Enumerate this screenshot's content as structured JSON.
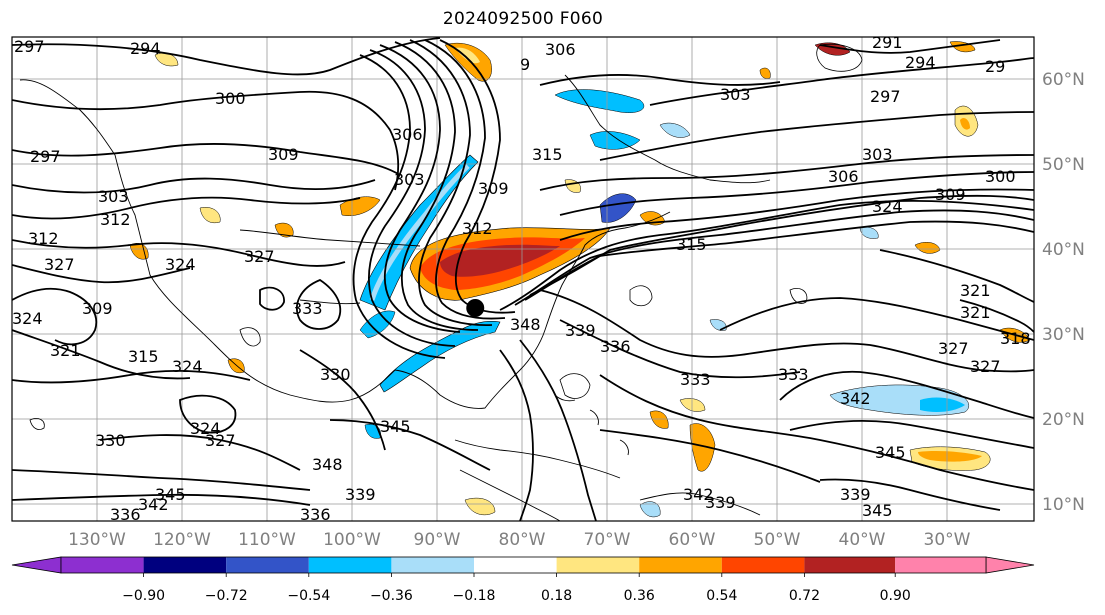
{
  "title": "2024092500 F060",
  "latitude_labels": [
    "60°N",
    "50°N",
    "40°N",
    "30°N",
    "20°N",
    "10°N"
  ],
  "longitude_labels": [
    "130°W",
    "120°W",
    "110°W",
    "100°W",
    "90°W",
    "80°W",
    "70°W",
    "60°W",
    "50°W",
    "40°W",
    "30°W"
  ],
  "colorbar": {
    "colors": [
      "#8d2fd0",
      "#00007f",
      "#3354c8",
      "#00bfff",
      "#a9def9",
      "#ffffff",
      "#ffe680",
      "#ffa500",
      "#ff4500",
      "#b22222",
      "#ff82ab"
    ],
    "tick_labels": [
      "−0.90",
      "−0.72",
      "−0.54",
      "−0.36",
      "−0.18",
      "0.18",
      "0.36",
      "0.54",
      "0.72",
      "0.90"
    ]
  },
  "contour_labels": [
    {
      "text": "297"
    },
    {
      "text": "294"
    },
    {
      "text": "306"
    },
    {
      "text": "9"
    },
    {
      "text": "291"
    },
    {
      "text": "294"
    },
    {
      "text": "29"
    },
    {
      "text": "300"
    },
    {
      "text": "303"
    },
    {
      "text": "297"
    },
    {
      "text": "306"
    },
    {
      "text": "309"
    },
    {
      "text": "297"
    },
    {
      "text": "303"
    },
    {
      "text": "309"
    },
    {
      "text": "315"
    },
    {
      "text": "303"
    },
    {
      "text": "306"
    },
    {
      "text": "309"
    },
    {
      "text": "300"
    },
    {
      "text": "303"
    },
    {
      "text": "312"
    },
    {
      "text": "324"
    },
    {
      "text": "315"
    },
    {
      "text": "312"
    },
    {
      "text": "327"
    },
    {
      "text": "327"
    },
    {
      "text": "324"
    },
    {
      "text": "309"
    },
    {
      "text": "324"
    },
    {
      "text": "321"
    },
    {
      "text": "315"
    },
    {
      "text": "324"
    },
    {
      "text": "333"
    },
    {
      "text": "348"
    },
    {
      "text": "339"
    },
    {
      "text": "336"
    },
    {
      "text": "333"
    },
    {
      "text": "333"
    },
    {
      "text": "342"
    },
    {
      "text": "321"
    },
    {
      "text": "318"
    },
    {
      "text": "327"
    },
    {
      "text": "330"
    },
    {
      "text": "324"
    },
    {
      "text": "327"
    },
    {
      "text": "345"
    },
    {
      "text": "348"
    },
    {
      "text": "339"
    },
    {
      "text": "336"
    },
    {
      "text": "345"
    },
    {
      "text": "342"
    },
    {
      "text": "336"
    },
    {
      "text": "339"
    },
    {
      "text": "345"
    },
    {
      "text": "342"
    },
    {
      "text": "339"
    },
    {
      "text": "345"
    },
    {
      "text": "312"
    },
    {
      "text": "321"
    },
    {
      "text": "327"
    },
    {
      "text": "330"
    }
  ],
  "storm_marker": {
    "lon": -85.5,
    "lat": 34.0
  }
}
